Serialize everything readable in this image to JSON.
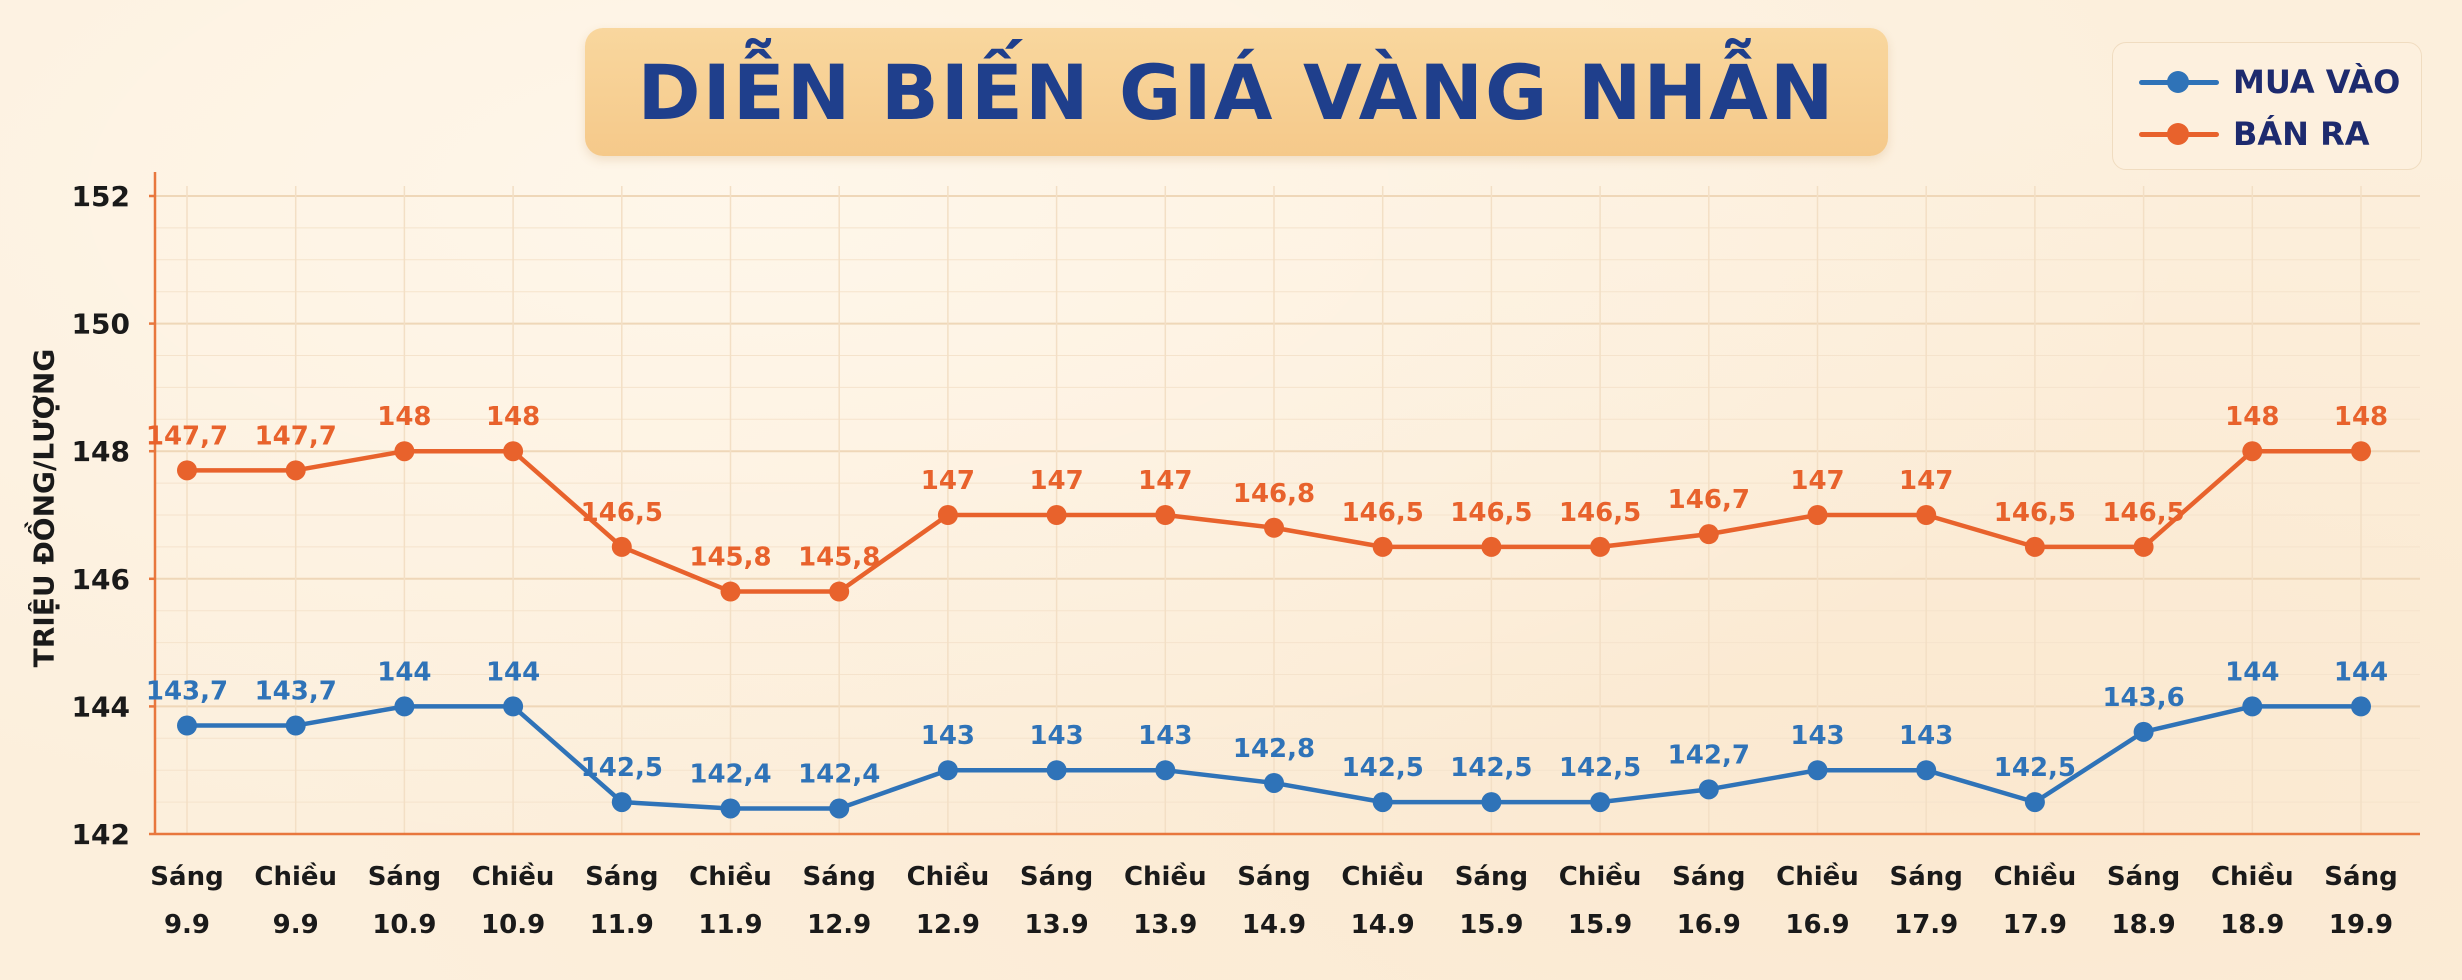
{
  "title": "DIỄN BIẾN GIÁ VÀNG NHẪN",
  "legend": [
    {
      "label": "MUA VÀO",
      "color": "#2f73b8"
    },
    {
      "label": "BÁN RA",
      "color": "#e8622c"
    }
  ],
  "chart_data": {
    "type": "line",
    "title": "DIỄN BIẾN GIÁ VÀNG NHẪN",
    "ylabel": "TRIỆU ĐỒNG/LƯỢNG",
    "xlabel": "",
    "ylim": [
      142,
      152
    ],
    "yticks": [
      "142",
      "144",
      "146",
      "148",
      "150",
      "152"
    ],
    "ytick_values": [
      142,
      144,
      146,
      148,
      150,
      152
    ],
    "grid": true,
    "legend_position": "top-right",
    "categories": [
      {
        "line1": "Sáng",
        "line2": "9.9"
      },
      {
        "line1": "Chiều",
        "line2": "9.9"
      },
      {
        "line1": "Sáng",
        "line2": "10.9"
      },
      {
        "line1": "Chiều",
        "line2": "10.9"
      },
      {
        "line1": "Sáng",
        "line2": "11.9"
      },
      {
        "line1": "Chiều",
        "line2": "11.9"
      },
      {
        "line1": "Sáng",
        "line2": "12.9"
      },
      {
        "line1": "Chiều",
        "line2": "12.9"
      },
      {
        "line1": "Sáng",
        "line2": "13.9"
      },
      {
        "line1": "Chiều",
        "line2": "13.9"
      },
      {
        "line1": "Sáng",
        "line2": "14.9"
      },
      {
        "line1": "Chiều",
        "line2": "14.9"
      },
      {
        "line1": "Sáng",
        "line2": "15.9"
      },
      {
        "line1": "Chiều",
        "line2": "15.9"
      },
      {
        "line1": "Sáng",
        "line2": "16.9"
      },
      {
        "line1": "Chiều",
        "line2": "16.9"
      },
      {
        "line1": "Sáng",
        "line2": "17.9"
      },
      {
        "line1": "Chiều",
        "line2": "17.9"
      },
      {
        "line1": "Sáng",
        "line2": "18.9"
      },
      {
        "line1": "Chiều",
        "line2": "18.9"
      },
      {
        "line1": "Sáng",
        "line2": "19.9"
      }
    ],
    "series": [
      {
        "name": "MUA VÀO",
        "color": "#2f73b8",
        "values": [
          143.7,
          143.7,
          144,
          144,
          142.5,
          142.4,
          142.4,
          143,
          143,
          143,
          142.8,
          142.5,
          142.5,
          142.5,
          142.7,
          143,
          143,
          142.5,
          143.6,
          144,
          144
        ],
        "labels": [
          "143,7",
          "143,7",
          "144",
          "144",
          "142,5",
          "142,4",
          "142,4",
          "143",
          "143",
          "143",
          "142,8",
          "142,5",
          "142,5",
          "142,5",
          "142,7",
          "143",
          "143",
          "142,5",
          "143,6",
          "144",
          "144"
        ]
      },
      {
        "name": "BÁN RA",
        "color": "#e8622c",
        "values": [
          147.7,
          147.7,
          148,
          148,
          146.5,
          145.8,
          145.8,
          147,
          147,
          147,
          146.8,
          146.5,
          146.5,
          146.5,
          146.7,
          147,
          147,
          146.5,
          146.5,
          148,
          148
        ],
        "labels": [
          "147,7",
          "147,7",
          "148",
          "148",
          "146,5",
          "145,8",
          "145,8",
          "147",
          "147",
          "147",
          "146,8",
          "146,5",
          "146,5",
          "146,5",
          "146,7",
          "147",
          "147",
          "146,5",
          "146,5",
          "148",
          "148"
        ]
      }
    ]
  }
}
